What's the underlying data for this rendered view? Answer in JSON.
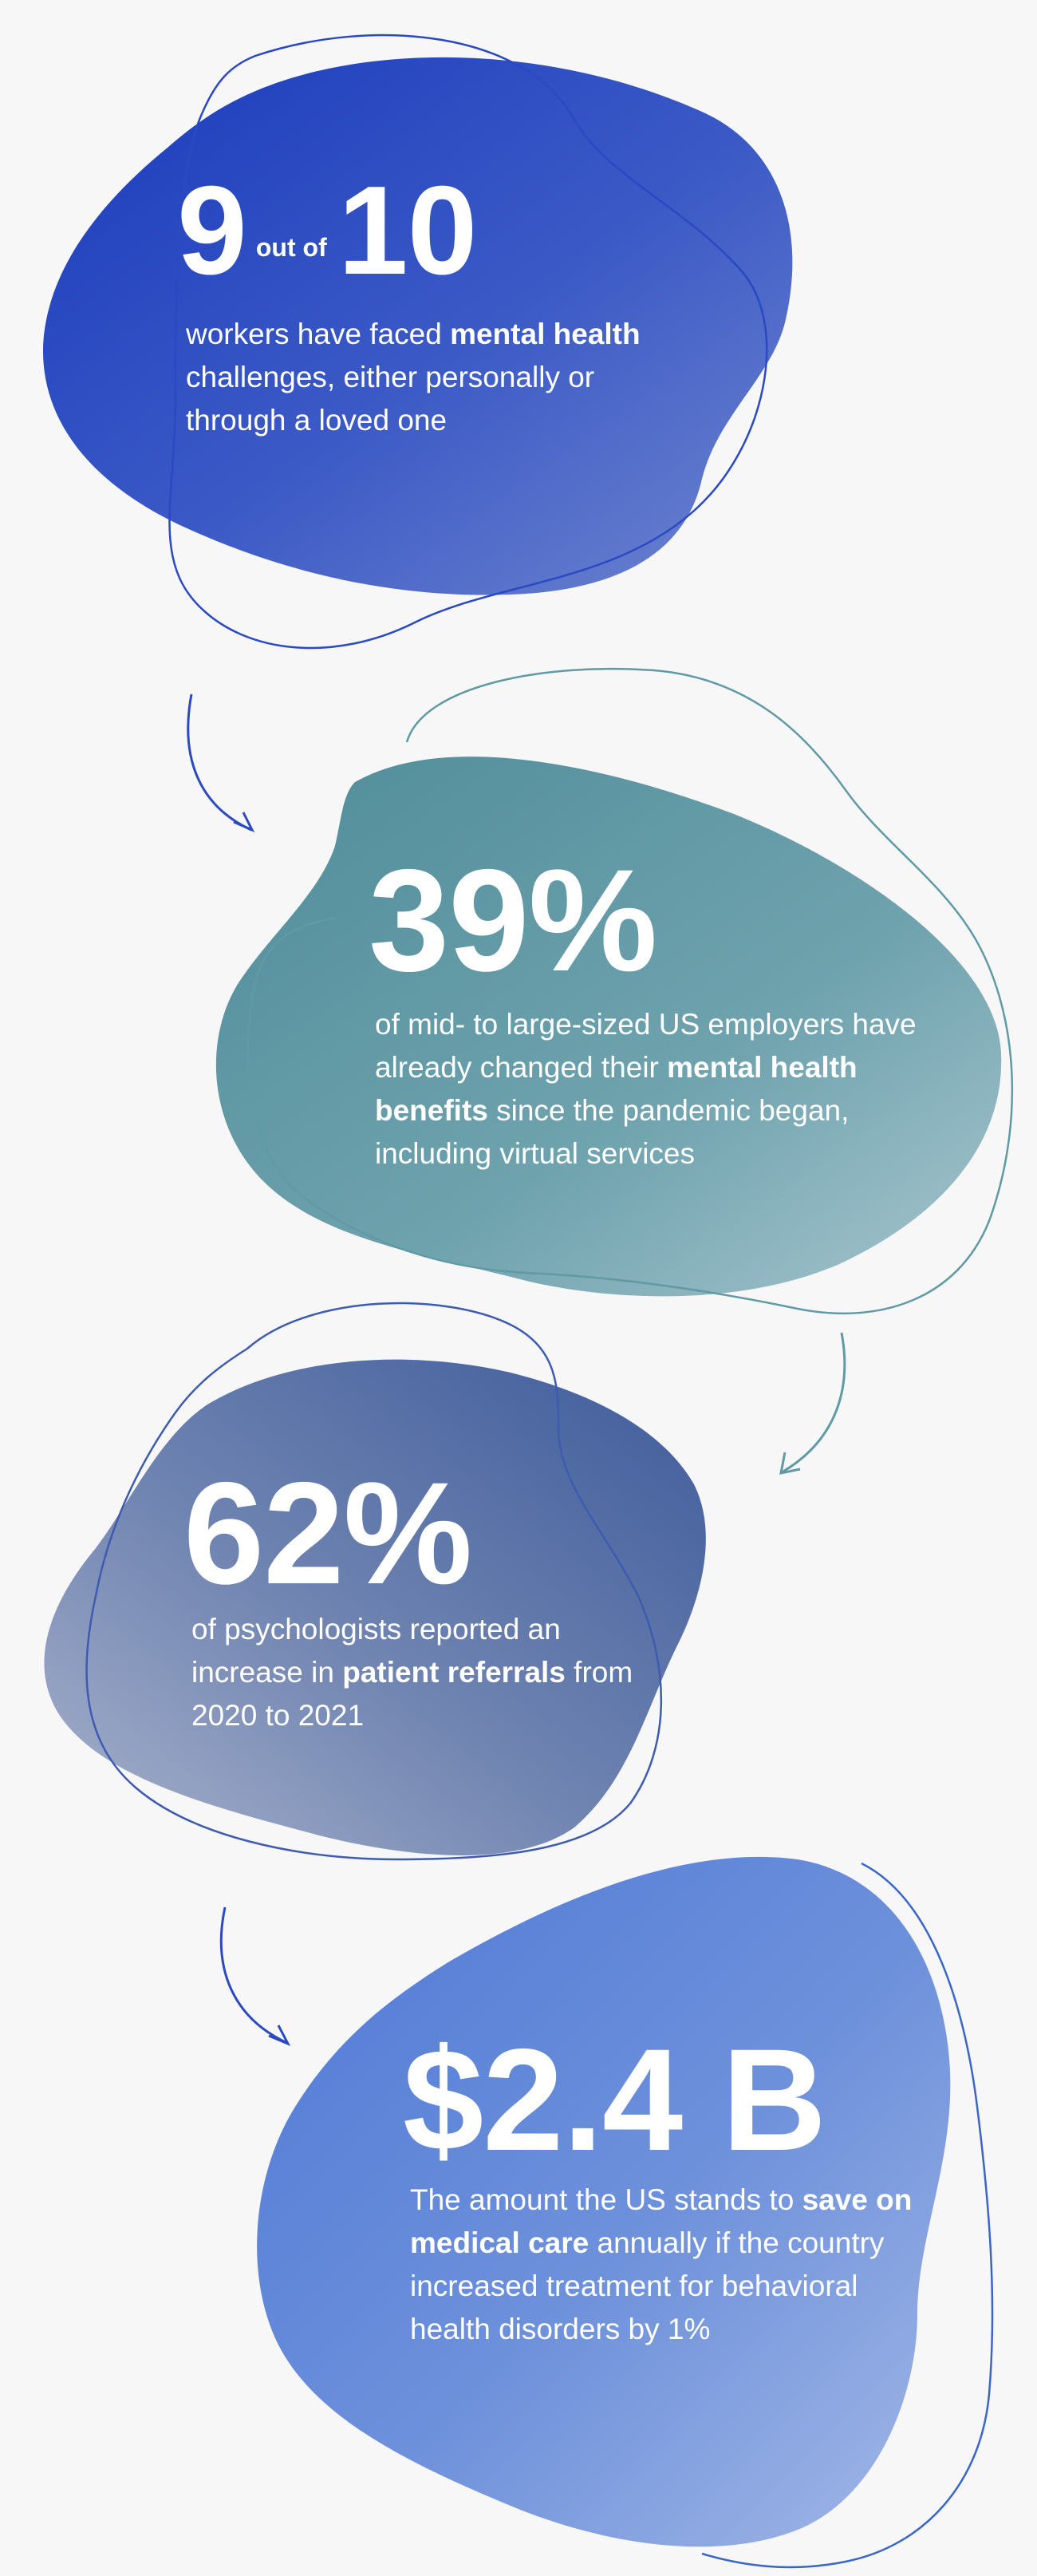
{
  "stats": [
    {
      "headline": {
        "number_a": "9",
        "joiner": "out of",
        "number_b": "10"
      },
      "desc": {
        "pre": "workers have faced ",
        "bold": "mental health",
        "post": " challenges, either personally or through a loved one"
      },
      "color": "#2a49c2"
    },
    {
      "headline": "39%",
      "desc": {
        "pre": "of mid- to large-sized US employers have already changed their ",
        "bold": "mental health benefits",
        "post": " since the pandemic began, including virtual services"
      },
      "color": "#5f9aa5"
    },
    {
      "headline": "62%",
      "desc": {
        "pre": "of psychologists reported an increase in ",
        "bold": "patient referrals",
        "post": " from 2020 to 2021"
      },
      "color": "#6a80ae"
    },
    {
      "headline": "$2.4 B",
      "desc": {
        "pre": "The amount the US stands to ",
        "bold": "save on medical care",
        "post": " annually if the country increased treatment for behavioral health disorders by 1%"
      },
      "color": "#6a8fdb"
    }
  ]
}
